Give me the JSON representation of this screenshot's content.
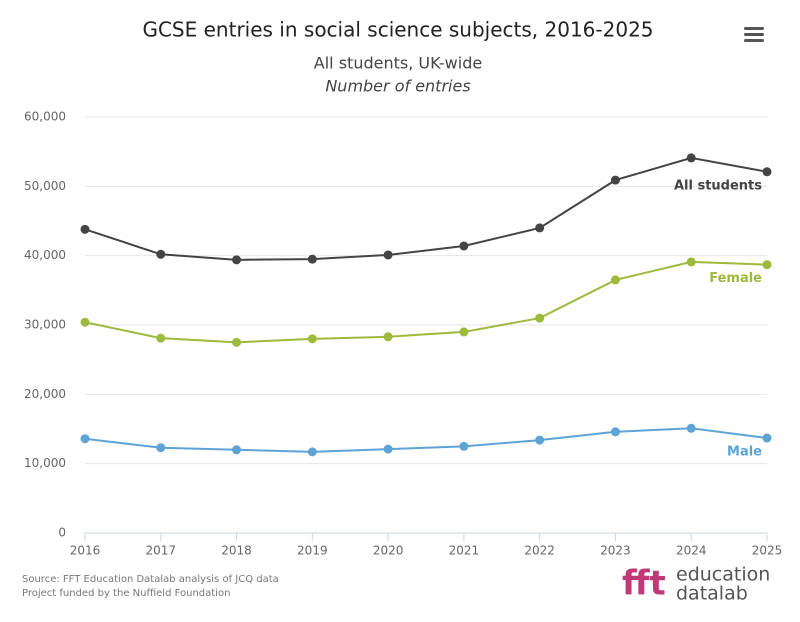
{
  "chart_data": {
    "type": "line",
    "title": "GCSE entries in social science subjects, 2016-2025",
    "subtitle": "All students, UK-wide",
    "y_label": "Number of entries",
    "categories": [
      "2016",
      "2017",
      "2018",
      "2019",
      "2020",
      "2021",
      "2022",
      "2023",
      "2024",
      "2025"
    ],
    "series": [
      {
        "name": "All students",
        "color": "#444444",
        "values": [
          43800,
          40200,
          39400,
          39500,
          40100,
          41400,
          44000,
          50900,
          54100,
          52100
        ]
      },
      {
        "name": "Female",
        "color": "#9dba3c",
        "values": [
          30400,
          28100,
          27500,
          28000,
          28300,
          29000,
          31000,
          36500,
          39100,
          38700
        ]
      },
      {
        "name": "Male",
        "color": "#5ea3d6",
        "values": [
          13600,
          12300,
          12000,
          11700,
          12100,
          12500,
          13400,
          14600,
          15100,
          13700
        ]
      }
    ],
    "ylim": [
      0,
      60000
    ],
    "yticks": [
      0,
      {
        "value": 10000,
        "label": "10,000"
      },
      {
        "value": 20000,
        "label": "20,000"
      },
      {
        "value": 30000,
        "label": "30,000"
      },
      {
        "value": 40000,
        "label": "40,000"
      },
      {
        "value": 50000,
        "label": "50,000"
      },
      {
        "value": 60000,
        "label": "60,000"
      }
    ],
    "grid": true,
    "source": [
      "Source: FFT Education Datalab analysis of JCQ data",
      "Project funded by the Nuffield Foundation"
    ],
    "logo": {
      "mark": "fft",
      "lines": [
        "education",
        "datalab"
      ]
    }
  }
}
